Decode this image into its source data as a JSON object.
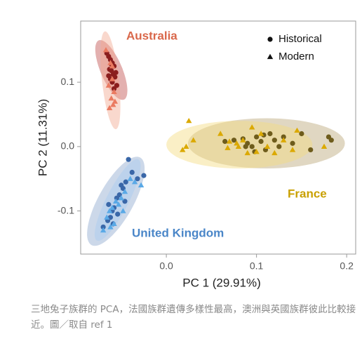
{
  "chart_data": {
    "type": "scatter",
    "x_label": "PC 1 (29.91%)",
    "y_label": "PC 2 (11.31%)",
    "xlim": [
      -0.095,
      0.21
    ],
    "ylim": [
      -0.167,
      0.195
    ],
    "xticks": [
      {
        "value": 0,
        "label": "0.0"
      },
      0.1,
      0.2
    ],
    "yticks": [
      {
        "value": -0.1,
        "label": "-0.1"
      },
      {
        "value": 0,
        "label": "0.0"
      },
      0.1
    ],
    "legend": [
      {
        "name": "Historical",
        "marker": "circle"
      },
      {
        "name": "Modern",
        "marker": "triangle"
      }
    ],
    "groups": [
      {
        "name": "Australia",
        "label_color": "#d9674a",
        "series": [
          {
            "color": "#8b1e1e",
            "ellipse_color": "#c0504d",
            "x": [
              -0.066,
              -0.064,
              -0.062,
              -0.06,
              -0.058,
              -0.063,
              -0.061,
              -0.059,
              -0.057,
              -0.062,
              -0.06,
              -0.055,
              -0.064,
              -0.058,
              -0.056,
              -0.061
            ],
            "values": [
              0.145,
              0.14,
              0.135,
              0.13,
              0.125,
              0.12,
              0.118,
              0.112,
              0.108,
              0.105,
              0.1,
              0.095,
              0.11,
              0.09,
              0.115,
              0.128
            ],
            "ellipse": {
              "center": [
                -0.061,
                0.119
              ],
              "axis1": [
                0.014,
                -0.046
              ],
              "axis2": [
                0.011,
                0.0066
              ]
            }
          },
          {
            "color": "#ea7a60",
            "ellipse_color": "#f2a890",
            "x": [
              -0.067,
              -0.062,
              -0.06,
              -0.058,
              -0.064,
              -0.061,
              -0.059,
              -0.063,
              -0.057,
              -0.06
            ],
            "values": [
              0.15,
              0.13,
              0.105,
              0.085,
              0.095,
              0.075,
              0.065,
              0.06,
              0.07,
              0.125
            ],
            "ellipse": {
              "center": [
                -0.062,
                0.103
              ],
              "axis1": [
                0.006,
                -0.076
              ],
              "axis2": [
                0.0093,
                0.0015
              ]
            }
          }
        ]
      },
      {
        "name": "France",
        "label_color": "#c9a000",
        "series": [
          {
            "color": "#6e5c1c",
            "ellipse_color": "#bba777",
            "x": [
              0.065,
              0.075,
              0.085,
              0.09,
              0.095,
              0.1,
              0.105,
              0.11,
              0.115,
              0.12,
              0.125,
              0.13,
              0.14,
              0.15,
              0.16,
              0.18,
              0.183,
              0.108,
              0.098,
              0.088
            ],
            "values": [
              0.008,
              0.01,
              0.012,
              0.005,
              0.0,
              0.015,
              0.008,
              -0.005,
              0.02,
              0.01,
              0.0,
              0.015,
              0.005,
              0.02,
              -0.005,
              0.015,
              0.01,
              0.018,
              -0.008,
              0.0
            ],
            "ellipse": {
              "center": [
                0.111,
                0.005
              ],
              "axis1": [
                0.087,
                0
              ],
              "axis2": [
                0,
                -0.039
              ]
            }
          },
          {
            "color": "#dba900",
            "ellipse_color": "#f5dc80",
            "x": [
              0.025,
              0.03,
              0.018,
              0.022,
              0.06,
              0.068,
              0.078,
              0.085,
              0.09,
              0.1,
              0.105,
              0.112,
              0.12,
              0.13,
              0.14,
              0.145,
              0.095,
              0.08,
              0.07,
              0.175
            ],
            "values": [
              0.04,
              0.01,
              -0.005,
              0.0,
              0.02,
              -0.002,
              0.005,
              0.01,
              -0.01,
              -0.008,
              0.02,
              0.0,
              -0.01,
              0.01,
              -0.005,
              0.025,
              0.03,
              0.0,
              0.008,
              0.0
            ],
            "ellipse": {
              "center": [
                0.081,
                0.003
              ],
              "axis1": [
                0.081,
                0
              ],
              "axis2": [
                0,
                -0.037
              ]
            }
          }
        ]
      },
      {
        "name": "United Kingdom",
        "label_color": "#4a86c8",
        "series": [
          {
            "color": "#3a67a8",
            "ellipse_color": "#8ea9cf",
            "x": [
              -0.042,
              -0.038,
              -0.032,
              -0.025,
              -0.045,
              -0.048,
              -0.05,
              -0.052,
              -0.055,
              -0.058,
              -0.06,
              -0.062,
              -0.065,
              -0.07,
              -0.046,
              -0.054,
              -0.059,
              -0.064
            ],
            "values": [
              -0.02,
              -0.04,
              -0.05,
              -0.045,
              -0.055,
              -0.065,
              -0.06,
              -0.075,
              -0.08,
              -0.095,
              -0.1,
              -0.11,
              -0.115,
              -0.125,
              -0.085,
              -0.105,
              -0.12,
              -0.09
            ],
            "ellipse": {
              "center": [
                -0.056,
                -0.085
              ],
              "axis1": [
                0.027,
                0.068
              ],
              "axis2": [
                -0.017,
                0.013
              ]
            }
          },
          {
            "color": "#5aa9e6",
            "ellipse_color": "#a9cdf0",
            "x": [
              -0.04,
              -0.035,
              -0.028,
              -0.046,
              -0.05,
              -0.053,
              -0.056,
              -0.06,
              -0.063,
              -0.066,
              -0.07,
              -0.058,
              -0.048,
              -0.062
            ],
            "values": [
              -0.05,
              -0.055,
              -0.06,
              -0.07,
              -0.08,
              -0.09,
              -0.085,
              -0.095,
              -0.1,
              -0.11,
              -0.13,
              -0.12,
              -0.1,
              -0.125
            ],
            "ellipse": {
              "center": [
                -0.054,
                -0.083
              ],
              "axis1": [
                0.023,
                0.063
              ],
              "axis2": [
                -0.011,
                0.0077
              ]
            }
          }
        ]
      }
    ]
  },
  "caption": "三地兔子族群的 PCA，法國族群遺傳多樣性最高，澳洲與英國族群彼此比較接近。圖／取自 ref 1"
}
